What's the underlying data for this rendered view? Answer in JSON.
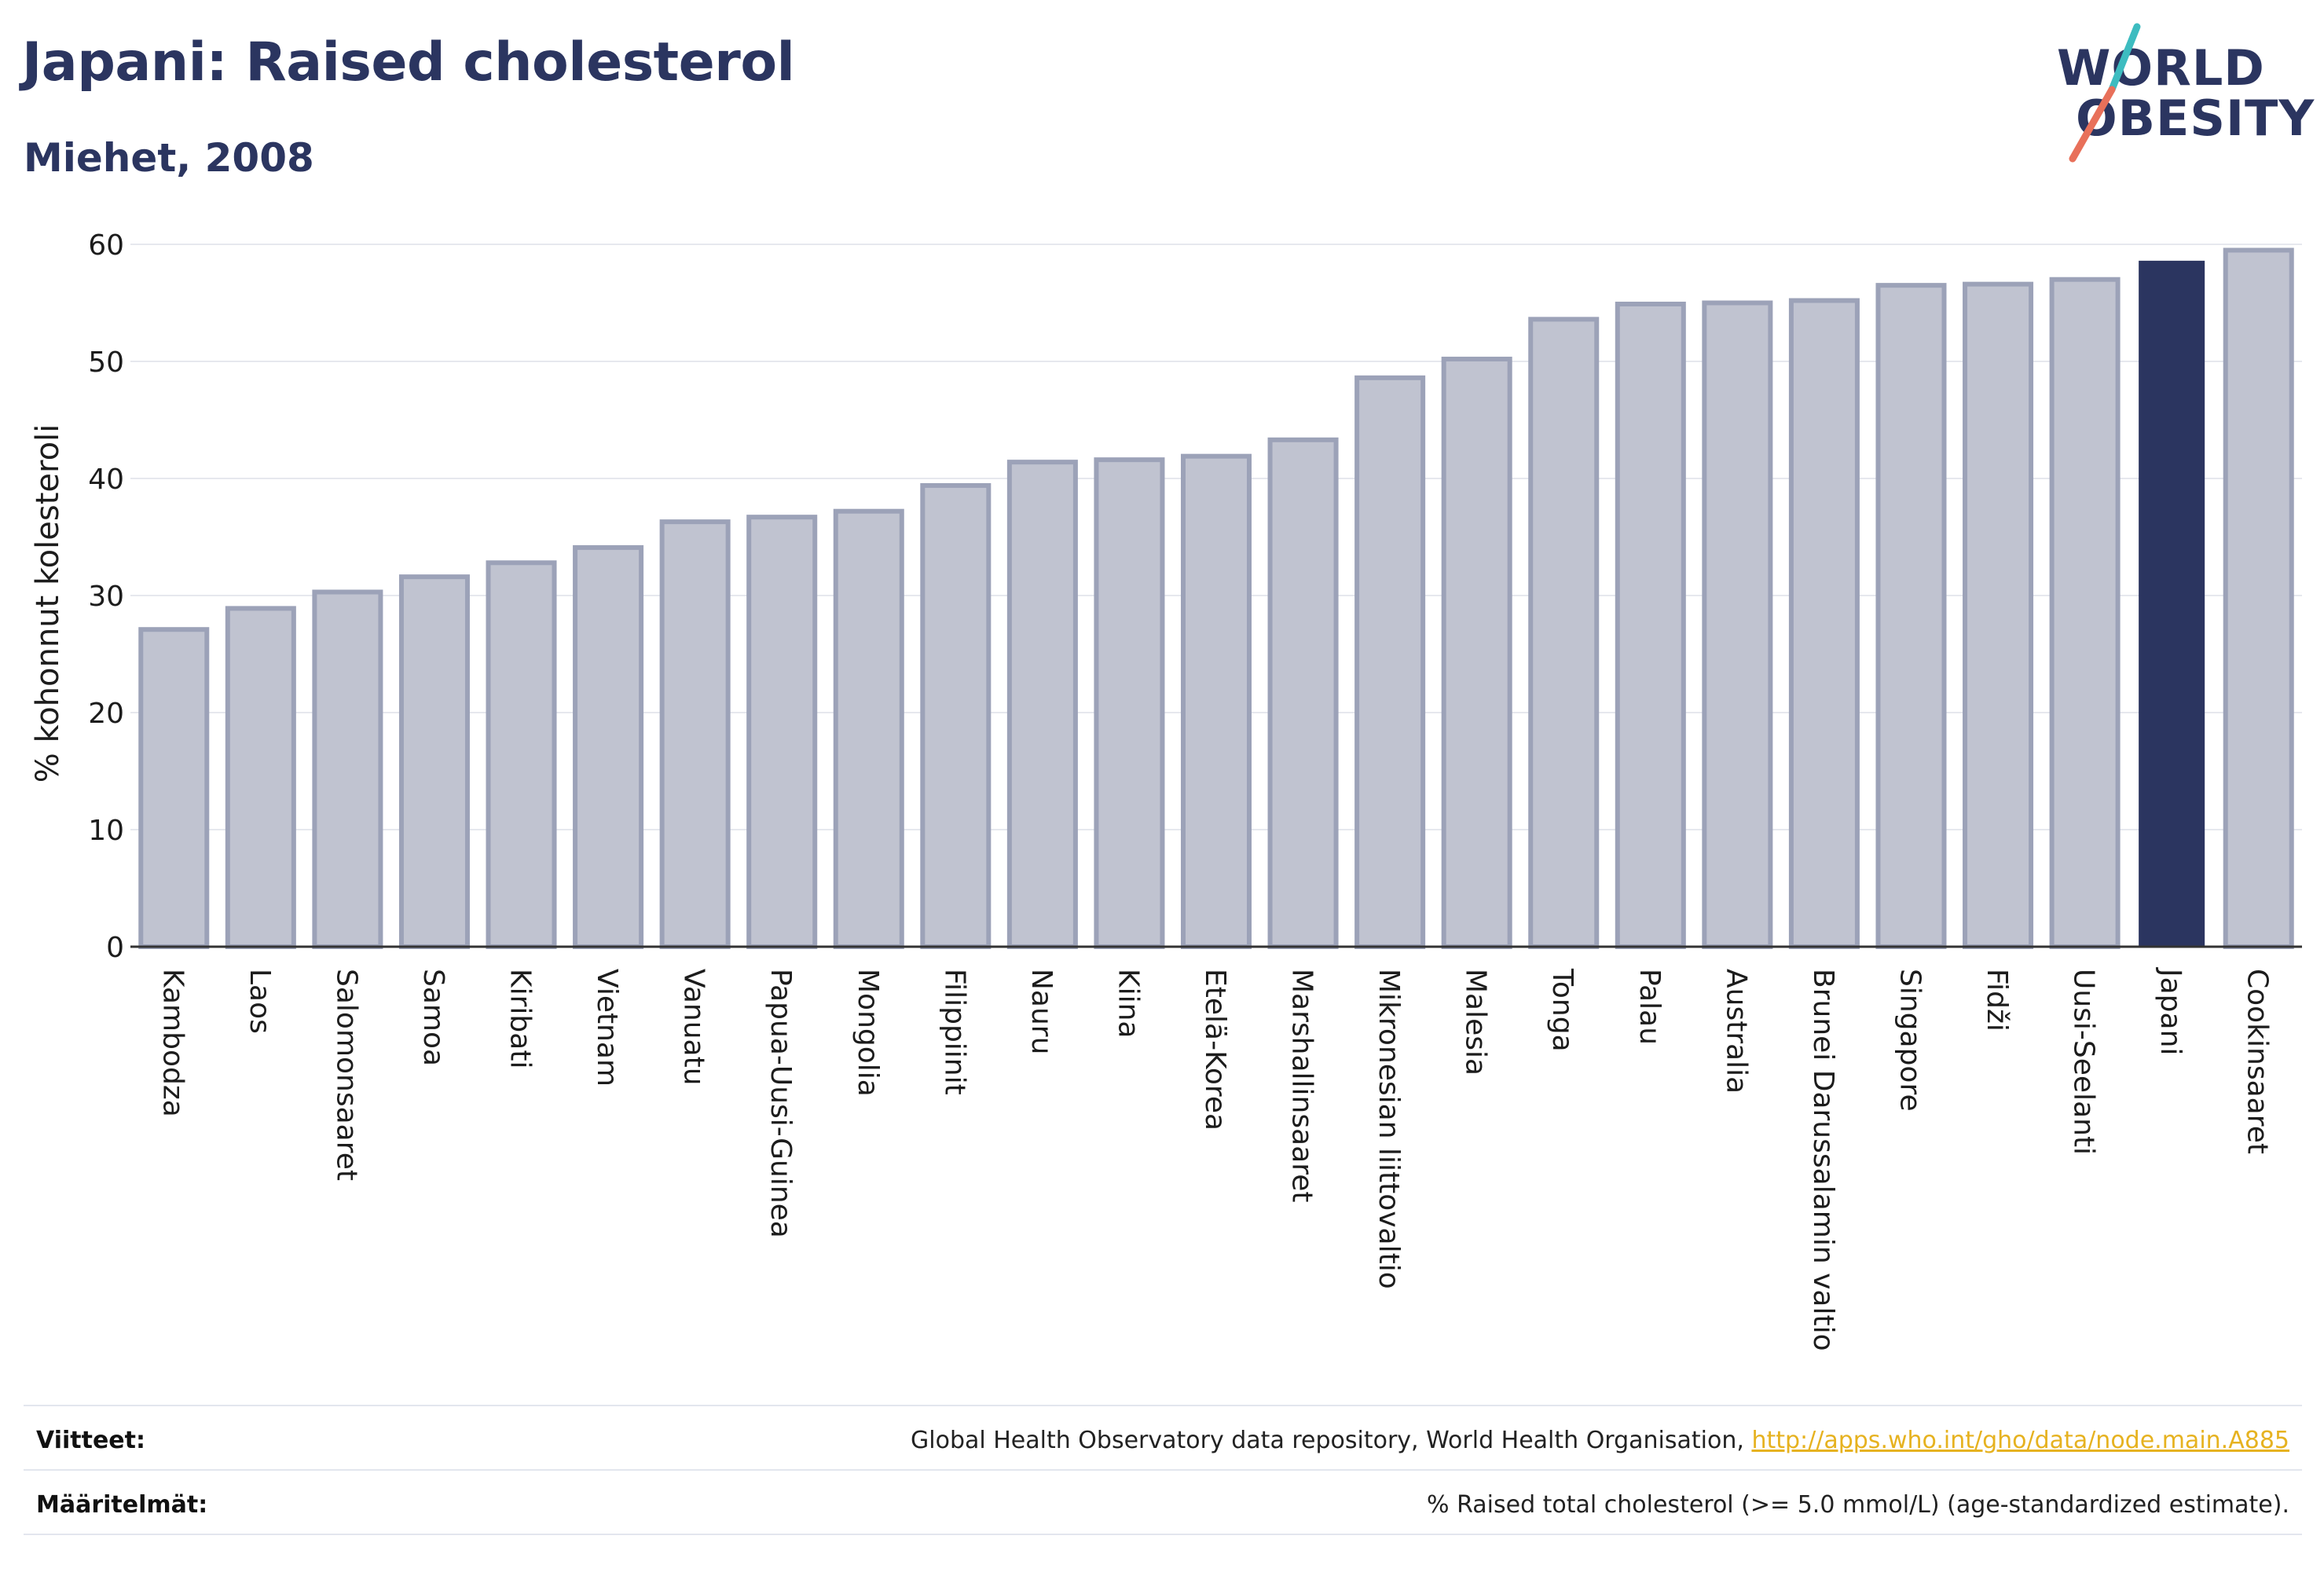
{
  "header": {
    "title": "Japani: Raised cholesterol",
    "subtitle": "Miehet, 2008"
  },
  "logo": {
    "line1": "WORLD",
    "line2": "OBESITY",
    "accent_teal": "#3dbcc0",
    "accent_coral": "#e8705a"
  },
  "colors": {
    "bar": "#c0c3d0",
    "bar_edge": "#9ca2b8",
    "highlight": "#2b3560",
    "text": "#2b3560",
    "grid": "#e6e8ee"
  },
  "chart_data": {
    "type": "bar",
    "ylabel": "% kohonnut kolesteroli",
    "ylim": [
      0,
      60
    ],
    "yticks": [
      0,
      10,
      20,
      30,
      40,
      50,
      60
    ],
    "grid": true,
    "highlight": "Japani",
    "categories": [
      "Kambodza",
      "Laos",
      "Salomonsaaret",
      "Samoa",
      "Kiribati",
      "Vietnam",
      "Vanuatu",
      "Papua-Uusi-Guinea",
      "Mongolia",
      "Filippiinit",
      "Nauru",
      "Kiina",
      "Etelä-Korea",
      "Marshallinsaaret",
      "Mikronesian liittovaltio",
      "Malesia",
      "Tonga",
      "Palau",
      "Australia",
      "Brunei Darussalamin valtio",
      "Singapore",
      "Fidži",
      "Uusi-Seelanti",
      "Japani",
      "Cookinsaaret"
    ],
    "values": [
      27.1,
      28.9,
      30.3,
      31.6,
      32.8,
      34.1,
      36.3,
      36.7,
      37.2,
      39.4,
      41.4,
      41.6,
      41.9,
      43.3,
      48.6,
      50.2,
      53.6,
      54.9,
      55.0,
      55.2,
      56.5,
      56.6,
      57.0,
      58.6,
      59.5
    ]
  },
  "footer": {
    "references_label": "Viitteet:",
    "references_text": "Global Health Observatory data repository, World Health Organisation, ",
    "references_link": "http://apps.who.int/gho/data/node.main.A885",
    "definitions_label": "Määritelmät:",
    "definitions_text": "% Raised total cholesterol (>= 5.0 mmol/L) (age-standardized estimate)."
  }
}
